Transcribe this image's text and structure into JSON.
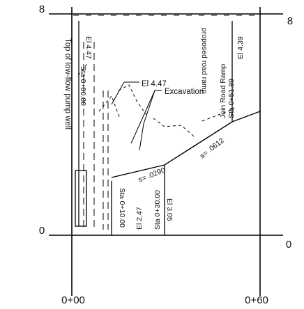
{
  "axes": {
    "y_top": "8",
    "y_bottom": "0",
    "x_left": "0+00",
    "x_right": "0+60"
  },
  "labels": {
    "top_of_low_flow_pump_well": "Top of low-flow pump well",
    "sta_0_00": "Sta 0+00.00",
    "el_4_47_left": "El 4.47",
    "el_4_47_center": "El 4.47",
    "excavation": "Excavation",
    "sta_0_51_89": "Sta 0+51.89",
    "join_road_ramp": "Join Road Ramp",
    "el_4_39": "El 4.39",
    "proposed_road_ramp": "proposed road ramp",
    "slope_0290": "s= .0290",
    "slope_0612": "s= .0612",
    "sta_0_10_00": "Sta 0+10.00",
    "el_2_47": "El 2.47",
    "sta_0_30_00": "Sta 0+30.00",
    "el_3_05": "El 3.05"
  }
}
